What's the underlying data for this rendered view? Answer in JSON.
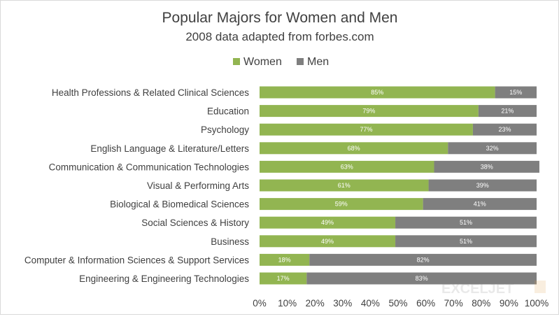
{
  "chart_data": {
    "type": "bar",
    "orientation": "horizontal",
    "stacked": "percent",
    "title": "Popular Majors for Women and Men",
    "subtitle": "2008 data adapted from forbes.com",
    "legend_position": "top",
    "categories": [
      "Health Professions & Related Clinical Sciences",
      "Education",
      "Psychology",
      "English Language & Literature/Letters",
      "Communication & Communication Technologies",
      "Visual & Performing Arts",
      "Biological & Biomedical Sciences",
      "Social Sciences & History",
      "Business",
      "Computer & Information Sciences & Support Services",
      "Engineering & Engineering Technologies"
    ],
    "series": [
      {
        "name": "Women",
        "color": "#92b551",
        "values": [
          85,
          79,
          77,
          68,
          63,
          61,
          59,
          49,
          49,
          18,
          17
        ]
      },
      {
        "name": "Men",
        "color": "#7f7f7f",
        "values": [
          15,
          21,
          23,
          32,
          38,
          39,
          41,
          51,
          51,
          82,
          83
        ]
      }
    ],
    "data_label_suffix": "%",
    "xlim": [
      0,
      100
    ],
    "xticks": [
      "0%",
      "10%",
      "20%",
      "30%",
      "40%",
      "50%",
      "60%",
      "70%",
      "80%",
      "90%",
      "100%"
    ],
    "watermark": "EXCELJET"
  }
}
